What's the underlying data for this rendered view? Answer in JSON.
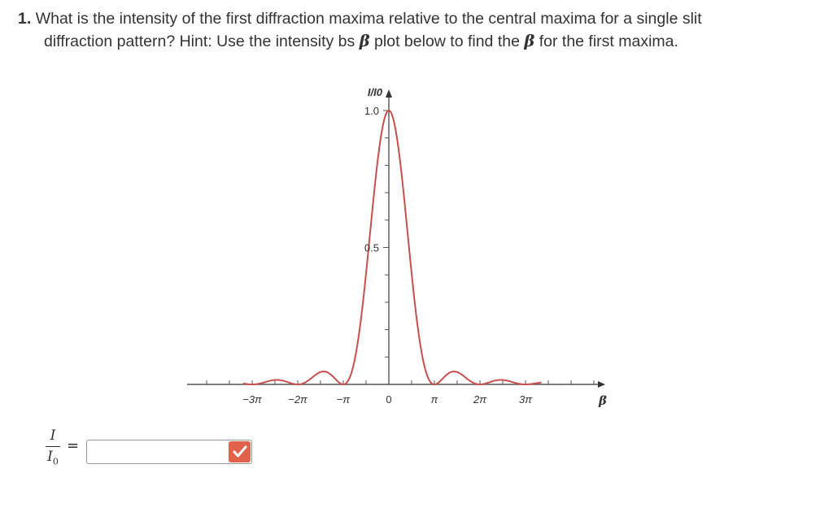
{
  "question": {
    "number": "1.",
    "line1": "What is the intensity of the first diffraction maxima relative to the central maxima for a single slit",
    "line2_a": "diffraction pattern? Hint: Use the intensity bs ",
    "beta1": "β",
    "line2_b": " plot below to find the ",
    "beta2": "β",
    "line2_c": " for the first maxima."
  },
  "chart_data": {
    "type": "line",
    "function": "single-slit intensity I/I0 = (sin β / β)^2",
    "xlim": [
      -3.2,
      3.35
    ],
    "ylim": [
      0,
      1.0
    ],
    "y_axis_label": "I/I0",
    "x_axis_label": "β",
    "y_ticks": [
      "1.0",
      "0.5"
    ],
    "x_ticks": [
      "−3π",
      "−2π",
      "−π",
      "0",
      "π",
      "2π",
      "3π"
    ],
    "x_tick_values": [
      -3,
      -2,
      -1,
      0,
      1,
      2,
      3
    ],
    "colors": {
      "curve": "#c94f4f",
      "axis": "#555555"
    }
  },
  "answer": {
    "numerator": "I",
    "denominator": "I",
    "denominator_sub": "0",
    "equals": "=",
    "value": ""
  },
  "check_icon": "checkmark-icon"
}
